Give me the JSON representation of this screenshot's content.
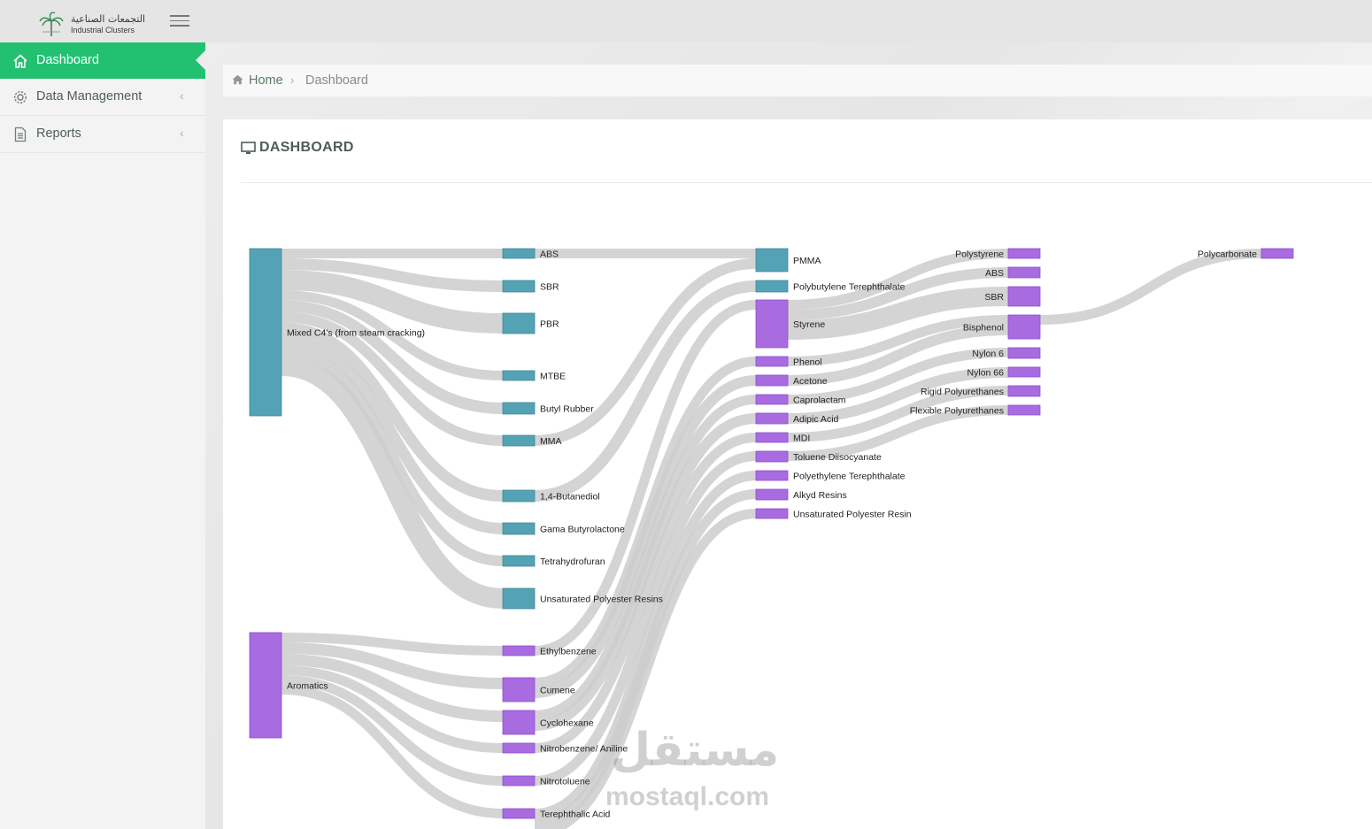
{
  "brand": {
    "arabic": "التجمعات الصناعية",
    "english": "Industrial Clusters"
  },
  "sidebar": {
    "items": [
      {
        "label": "Dashboard",
        "icon": "home-icon",
        "active": true
      },
      {
        "label": "Data Management",
        "icon": "gear-icon",
        "active": false
      },
      {
        "label": "Reports",
        "icon": "document-icon",
        "active": false
      }
    ]
  },
  "breadcrumb": {
    "home": "Home",
    "current": "Dashboard"
  },
  "page": {
    "title": "DASHBOARD"
  },
  "watermark": {
    "arabic": "مستقل",
    "latin": "mostaql.com"
  },
  "colors": {
    "accent": "#22c172",
    "teal": "#54a3b5",
    "purple": "#a86be0",
    "link": "#cdcdcd"
  },
  "sankey": {
    "nodes": [
      {
        "id": "mixed",
        "label": "Mixed C4's (from steam cracking)",
        "col": 0,
        "y0": 41,
        "y1": 230,
        "color": "teal"
      },
      {
        "id": "arom",
        "label": "Aromatics",
        "col": 0,
        "y0": 475,
        "y1": 594,
        "color": "purple"
      },
      {
        "id": "abs1",
        "label": "ABS",
        "col": 1,
        "y0": 41,
        "y1": 52,
        "color": "teal"
      },
      {
        "id": "sbr1",
        "label": "SBR",
        "col": 1,
        "y0": 77,
        "y1": 90,
        "color": "teal"
      },
      {
        "id": "pbr",
        "label": "PBR",
        "col": 1,
        "y0": 114,
        "y1": 137,
        "color": "teal"
      },
      {
        "id": "mtbe",
        "label": "MTBE",
        "col": 1,
        "y0": 179,
        "y1": 190,
        "color": "teal"
      },
      {
        "id": "butyl",
        "label": "Butyl Rubber",
        "col": 1,
        "y0": 215,
        "y1": 228,
        "color": "teal"
      },
      {
        "id": "mma",
        "label": "MMA",
        "col": 1,
        "y0": 252,
        "y1": 264,
        "color": "teal"
      },
      {
        "id": "bdo",
        "label": "1,4-Butanediol",
        "col": 1,
        "y0": 314,
        "y1": 327,
        "color": "teal"
      },
      {
        "id": "gbl",
        "label": "Gama Butyrolactone",
        "col": 1,
        "y0": 351,
        "y1": 364,
        "color": "teal"
      },
      {
        "id": "thf",
        "label": "Tetrahydrofuran",
        "col": 1,
        "y0": 388,
        "y1": 400,
        "color": "teal"
      },
      {
        "id": "upr",
        "label": "Unsaturated Polyester Resins",
        "col": 1,
        "y0": 425,
        "y1": 448,
        "color": "teal"
      },
      {
        "id": "eb",
        "label": "Ethylbenzene",
        "col": 1,
        "y0": 490,
        "y1": 501,
        "color": "purple"
      },
      {
        "id": "cumene",
        "label": "Cumene",
        "col": 1,
        "y0": 526,
        "y1": 553,
        "color": "purple"
      },
      {
        "id": "chx",
        "label": "Cyclohexane",
        "col": 1,
        "y0": 563,
        "y1": 590,
        "color": "purple"
      },
      {
        "id": "nb",
        "label": "Nitrobenzene/ Aniline",
        "col": 1,
        "y0": 600,
        "y1": 611,
        "color": "purple"
      },
      {
        "id": "nt",
        "label": "Nitrotoluene",
        "col": 1,
        "y0": 637,
        "y1": 648,
        "color": "purple"
      },
      {
        "id": "pta",
        "label": "Terephthalic Acid",
        "col": 1,
        "y0": 674,
        "y1": 685,
        "color": "purple"
      },
      {
        "id": "pmma",
        "label": "PMMA",
        "col": 2,
        "y0": 41,
        "y1": 67,
        "color": "teal"
      },
      {
        "id": "pbt",
        "label": "Polybutylene Terephthalate",
        "col": 2,
        "y0": 77,
        "y1": 90,
        "color": "teal"
      },
      {
        "id": "styrene",
        "label": "Styrene",
        "col": 2,
        "y0": 99,
        "y1": 153,
        "color": "purple"
      },
      {
        "id": "phenol",
        "label": "Phenol",
        "col": 2,
        "y0": 163,
        "y1": 174,
        "color": "purple"
      },
      {
        "id": "acetone",
        "label": "Acetone",
        "col": 2,
        "y0": 184,
        "y1": 196,
        "color": "purple"
      },
      {
        "id": "capro",
        "label": "Caprolactam",
        "col": 2,
        "y0": 206,
        "y1": 217,
        "color": "purple"
      },
      {
        "id": "adipic",
        "label": "Adipic Acid",
        "col": 2,
        "y0": 227,
        "y1": 239,
        "color": "purple"
      },
      {
        "id": "mdi",
        "label": "MDI",
        "col": 2,
        "y0": 249,
        "y1": 260,
        "color": "purple"
      },
      {
        "id": "tdi",
        "label": "Toluene Diisocyanate",
        "col": 2,
        "y0": 270,
        "y1": 282,
        "color": "purple"
      },
      {
        "id": "pet",
        "label": "Polyethylene Terephthalate",
        "col": 2,
        "y0": 292,
        "y1": 303,
        "color": "purple"
      },
      {
        "id": "alkyd",
        "label": "Alkyd Resins",
        "col": 2,
        "y0": 313,
        "y1": 325,
        "color": "purple"
      },
      {
        "id": "upres",
        "label": "Unsaturated Polyester Resin",
        "col": 2,
        "y0": 335,
        "y1": 346,
        "color": "purple"
      },
      {
        "id": "ps",
        "label": "Polystyrene",
        "col": 3,
        "y0": 41,
        "y1": 52,
        "color": "purple"
      },
      {
        "id": "abs2",
        "label": "ABS",
        "col": 3,
        "y0": 62,
        "y1": 74,
        "color": "purple"
      },
      {
        "id": "sbr2",
        "label": "SBR",
        "col": 3,
        "y0": 84,
        "y1": 106,
        "color": "purple"
      },
      {
        "id": "bisphenol",
        "label": "Bisphenol",
        "col": 3,
        "y0": 116,
        "y1": 143,
        "color": "purple"
      },
      {
        "id": "ny6",
        "label": "Nylon 6",
        "col": 3,
        "y0": 153,
        "y1": 165,
        "color": "purple"
      },
      {
        "id": "ny66",
        "label": "Nylon 66",
        "col": 3,
        "y0": 175,
        "y1": 186,
        "color": "purple"
      },
      {
        "id": "rpu",
        "label": "Rigid Polyurethanes",
        "col": 3,
        "y0": 196,
        "y1": 208,
        "color": "purple"
      },
      {
        "id": "fpu",
        "label": "Flexible Polyurethanes",
        "col": 3,
        "y0": 218,
        "y1": 229,
        "color": "purple"
      },
      {
        "id": "pc",
        "label": "Polycarbonate",
        "col": 4,
        "y0": 41,
        "y1": 52,
        "color": "purple"
      }
    ],
    "links": [
      {
        "source": "mixed",
        "target": "abs1",
        "value": 11
      },
      {
        "source": "mixed",
        "target": "sbr1",
        "value": 13
      },
      {
        "source": "mixed",
        "target": "pbr",
        "value": 23
      },
      {
        "source": "mixed",
        "target": "mtbe",
        "value": 11
      },
      {
        "source": "mixed",
        "target": "butyl",
        "value": 13
      },
      {
        "source": "mixed",
        "target": "mma",
        "value": 12
      },
      {
        "source": "mixed",
        "target": "bdo",
        "value": 13
      },
      {
        "source": "mixed",
        "target": "gbl",
        "value": 13
      },
      {
        "source": "mixed",
        "target": "thf",
        "value": 12
      },
      {
        "source": "mixed",
        "target": "upr",
        "value": 23
      },
      {
        "source": "arom",
        "target": "eb",
        "value": 11
      },
      {
        "source": "arom",
        "target": "cumene",
        "value": 13
      },
      {
        "source": "arom",
        "target": "chx",
        "value": 13
      },
      {
        "source": "arom",
        "target": "nb",
        "value": 11
      },
      {
        "source": "arom",
        "target": "nt",
        "value": 11
      },
      {
        "source": "arom",
        "target": "pta",
        "value": 11
      },
      {
        "source": "abs1",
        "target": "pmma",
        "value": 11
      },
      {
        "source": "mma",
        "target": "pmma",
        "value": 12
      },
      {
        "source": "bdo",
        "target": "pbt",
        "value": 13
      },
      {
        "source": "eb",
        "target": "styrene",
        "value": 11
      },
      {
        "source": "cumene",
        "target": "phenol",
        "value": 11
      },
      {
        "source": "cumene",
        "target": "acetone",
        "value": 12
      },
      {
        "source": "chx",
        "target": "capro",
        "value": 11
      },
      {
        "source": "chx",
        "target": "adipic",
        "value": 12
      },
      {
        "source": "nb",
        "target": "mdi",
        "value": 11
      },
      {
        "source": "nt",
        "target": "tdi",
        "value": 11
      },
      {
        "source": "pta",
        "target": "pet",
        "value": 11
      },
      {
        "source": "pta",
        "target": "alkyd",
        "value": 11
      },
      {
        "source": "pta",
        "target": "upres",
        "value": 11
      },
      {
        "source": "styrene",
        "target": "ps",
        "value": 11
      },
      {
        "source": "styrene",
        "target": "abs2",
        "value": 12
      },
      {
        "source": "styrene",
        "target": "sbr2",
        "value": 22
      },
      {
        "source": "phenol",
        "target": "bisphenol",
        "value": 11
      },
      {
        "source": "acetone",
        "target": "bisphenol",
        "value": 12
      },
      {
        "source": "capro",
        "target": "ny6",
        "value": 11
      },
      {
        "source": "adipic",
        "target": "ny66",
        "value": 12
      },
      {
        "source": "mdi",
        "target": "rpu",
        "value": 11
      },
      {
        "source": "tdi",
        "target": "fpu",
        "value": 11
      },
      {
        "source": "bisphenol",
        "target": "pc",
        "value": 11
      }
    ]
  }
}
